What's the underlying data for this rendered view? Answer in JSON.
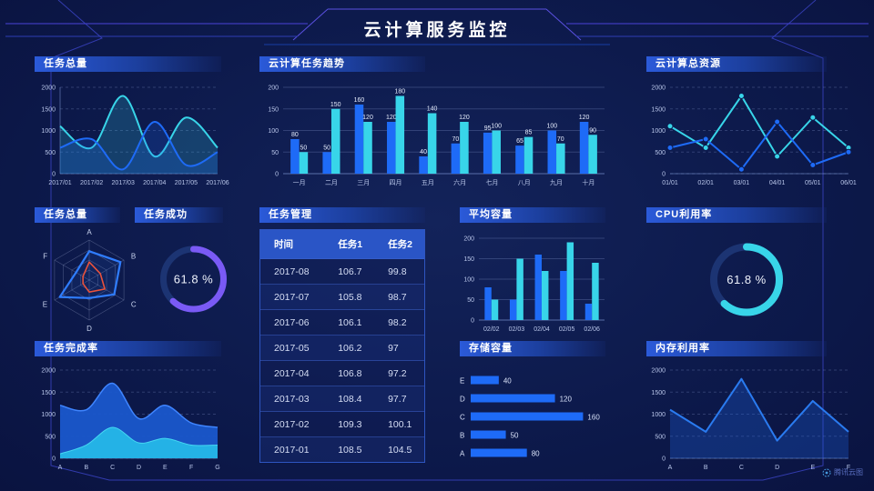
{
  "header": {
    "title": "云计算服务监控",
    "brand": "腾讯云图"
  },
  "colors": {
    "blue": "#1e6bf7",
    "cyan": "#38d5e9",
    "purple": "#7a5af5",
    "red": "#e8523c",
    "track": "#1c3473"
  },
  "panels": {
    "tasks_total": {
      "title": "任务总量"
    },
    "trend": {
      "title": "云计算任务趋势"
    },
    "resources": {
      "title": "云计算总资源"
    },
    "radar": {
      "title": "任务总量"
    },
    "success": {
      "title": "任务成功"
    },
    "task_table": {
      "title": "任务管理"
    },
    "avg_capacity": {
      "title": "平均容量"
    },
    "cpu": {
      "title": "CPU利用率"
    },
    "completion": {
      "title": "任务完成率"
    },
    "storage": {
      "title": "存储容量"
    },
    "memory": {
      "title": "内存利用率"
    }
  },
  "table": {
    "headers": [
      "时间",
      "任务1",
      "任务2"
    ],
    "rows": [
      [
        "2017-08",
        "106.7",
        "99.8"
      ],
      [
        "2017-07",
        "105.8",
        "98.7"
      ],
      [
        "2017-06",
        "106.1",
        "98.2"
      ],
      [
        "2017-05",
        "106.2",
        "97"
      ],
      [
        "2017-04",
        "106.8",
        "97.2"
      ],
      [
        "2017-03",
        "108.4",
        "97.7"
      ],
      [
        "2017-02",
        "109.3",
        "100.1"
      ],
      [
        "2017-01",
        "108.5",
        "104.5"
      ]
    ]
  },
  "chart_data": [
    {
      "id": "tasks_total",
      "type": "area",
      "title": "任务总量",
      "smooth": true,
      "dashed": true,
      "left_axis": true,
      "x": [
        "2017/01",
        "2017/02",
        "2017/03",
        "2017/04",
        "2017/05",
        "2017/06"
      ],
      "ylim": [
        0,
        2000
      ],
      "yticks": [
        0,
        500,
        1000,
        1500,
        2000
      ],
      "ml": 28,
      "mr": 6,
      "series": [
        {
          "name": "series-cyan",
          "color": "cyan",
          "fill_opacity": 0.2,
          "values": [
            1100,
            600,
            1800,
            400,
            1300,
            600
          ]
        },
        {
          "name": "series-blue",
          "color": "blue",
          "fill_opacity": 0.2,
          "values": [
            600,
            800,
            100,
            1200,
            200,
            500
          ]
        }
      ]
    },
    {
      "id": "trend",
      "type": "bar",
      "title": "云计算任务趋势",
      "labels": true,
      "categories": [
        "一月",
        "二月",
        "三月",
        "四月",
        "五月",
        "六月",
        "七月",
        "八月",
        "九月",
        "十月"
      ],
      "ylim": [
        0,
        200
      ],
      "yticks": [
        0,
        50,
        100,
        150,
        200
      ],
      "ml": 26,
      "mr": 6,
      "series": [
        {
          "name": "series-blue",
          "color": "blue",
          "values": [
            80,
            50,
            160,
            120,
            40,
            70,
            95,
            65,
            100,
            120
          ]
        },
        {
          "name": "series-cyan",
          "color": "cyan",
          "values": [
            50,
            150,
            120,
            180,
            140,
            120,
            100,
            85,
            70,
            90
          ]
        }
      ]
    },
    {
      "id": "resources",
      "type": "line",
      "title": "云计算总资源",
      "markers": true,
      "dashed": true,
      "x": [
        "01/01",
        "02/01",
        "03/01",
        "04/01",
        "05/01",
        "06/01"
      ],
      "ylim": [
        0,
        2000
      ],
      "yticks": [
        0,
        500,
        1000,
        1500,
        2000
      ],
      "ml": 30,
      "mr": 10,
      "series": [
        {
          "name": "series-cyan",
          "color": "cyan",
          "values": [
            1100,
            600,
            1800,
            400,
            1300,
            600
          ]
        },
        {
          "name": "series-blue",
          "color": "blue",
          "values": [
            600,
            800,
            100,
            1200,
            200,
            500
          ]
        }
      ]
    },
    {
      "id": "radar",
      "type": "radar",
      "title": "任务总量",
      "axes": [
        "A",
        "B",
        "C",
        "D",
        "E",
        "F"
      ],
      "max": 100,
      "r": 44,
      "series": [
        {
          "name": "series-blue",
          "color": "#2f7dff",
          "width": 2.2,
          "values": [
            72,
            90,
            72,
            45,
            85,
            38
          ]
        },
        {
          "name": "series-red",
          "color": "#e8523c",
          "width": 1.6,
          "values": [
            45,
            32,
            45,
            30,
            18,
            18
          ]
        }
      ]
    },
    {
      "id": "success",
      "type": "pie",
      "subtype": "donut",
      "title": "任务成功",
      "value": 61.8,
      "label": "61.8 %",
      "color": "purple",
      "r": 33,
      "sw": 7
    },
    {
      "id": "avg_capacity",
      "type": "bar",
      "title": "平均容量",
      "labels": false,
      "categories": [
        "02/02",
        "02/03",
        "02/04",
        "02/05",
        "02/06"
      ],
      "ylim": [
        0,
        200
      ],
      "yticks": [
        0,
        50,
        100,
        150,
        200
      ],
      "ml": 26,
      "mr": 8,
      "series": [
        {
          "name": "series-blue",
          "color": "blue",
          "values": [
            80,
            50,
            160,
            120,
            40
          ]
        },
        {
          "name": "series-cyan",
          "color": "cyan",
          "values": [
            50,
            150,
            120,
            190,
            140
          ]
        }
      ]
    },
    {
      "id": "cpu",
      "type": "pie",
      "subtype": "donut",
      "title": "CPU利用率",
      "value": 61.8,
      "label": "61.8 %",
      "color": "cyan",
      "r": 36,
      "sw": 8
    },
    {
      "id": "completion",
      "type": "area",
      "title": "任务完成率",
      "smooth": true,
      "dashed": true,
      "x": [
        "A",
        "B",
        "C",
        "D",
        "E",
        "F",
        "G"
      ],
      "ylim": [
        0,
        2000
      ],
      "yticks": [
        0,
        500,
        1000,
        1500,
        2000
      ],
      "ml": 28,
      "mr": 6,
      "series": [
        {
          "name": "series-blue-total",
          "color": "#3f85ff",
          "fill": "#1a57cc",
          "fill_opacity": 0.95,
          "width": 1.5,
          "values": [
            1200,
            1100,
            1700,
            900,
            1200,
            800,
            700
          ]
        },
        {
          "name": "series-cyan-bottom",
          "color": "#45d8f2",
          "fill": "#24b2e6",
          "fill_opacity": 1,
          "width": 1,
          "values": [
            100,
            300,
            700,
            350,
            450,
            300,
            300
          ]
        }
      ]
    },
    {
      "id": "storage",
      "type": "bar",
      "orientation": "horizontal",
      "title": "存储容量",
      "categories": [
        "E",
        "D",
        "C",
        "B",
        "A"
      ],
      "values": [
        40,
        120,
        160,
        50,
        80
      ],
      "xmax": 175,
      "color": "blue"
    },
    {
      "id": "memory",
      "type": "area",
      "title": "内存利用率",
      "dashed": true,
      "x": [
        "A",
        "B",
        "C",
        "D",
        "E",
        "F"
      ],
      "ylim": [
        0,
        2000
      ],
      "yticks": [
        0,
        500,
        1000,
        1500,
        2000
      ],
      "ml": 30,
      "mr": 10,
      "series": [
        {
          "name": "series-blue",
          "color": "#2a7bf0",
          "fill": "#1e62e0",
          "fill_opacity": 0.3,
          "values": [
            1100,
            600,
            1800,
            400,
            1300,
            600
          ]
        }
      ]
    }
  ]
}
